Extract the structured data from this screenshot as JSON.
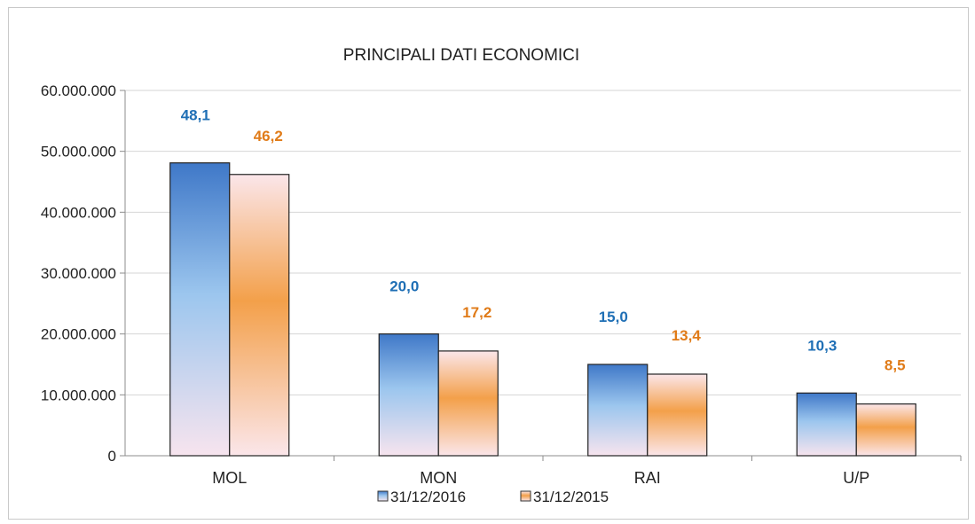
{
  "chart_data": {
    "type": "bar",
    "title": "PRINCIPALI DATI ECONOMICI",
    "categories": [
      "MOL",
      "MON",
      "RAI",
      "U/P"
    ],
    "series": [
      {
        "name": "31/12/2016",
        "values": [
          48100000,
          20000000,
          15000000,
          10300000
        ],
        "labels": [
          "48,1",
          "20,0",
          "15,0",
          "10,3"
        ],
        "label_color": "#1f6fb5",
        "color_top": "#3f78c8",
        "color_mid": "#9cc6ee",
        "color_bottom": "#f7e4ee"
      },
      {
        "name": "31/12/2015",
        "values": [
          46200000,
          17200000,
          13400000,
          8500000
        ],
        "labels": [
          "46,2",
          "17,2",
          "13,4",
          "8,5"
        ],
        "label_color": "#e07b18",
        "color_top": "#fbe6ea",
        "color_mid": "#f3a04a",
        "color_bottom": "#fbe6ea"
      }
    ],
    "ylim": [
      0,
      60000000
    ],
    "yticks": [
      0,
      10000000,
      20000000,
      30000000,
      40000000,
      50000000,
      60000000
    ],
    "ytick_labels": [
      "0",
      "10.000.000",
      "20.000.000",
      "30.000.000",
      "40.000.000",
      "50.000.000",
      "60.000.000"
    ],
    "xlabel": "",
    "ylabel": "",
    "grid": true,
    "legend_position": "bottom"
  }
}
